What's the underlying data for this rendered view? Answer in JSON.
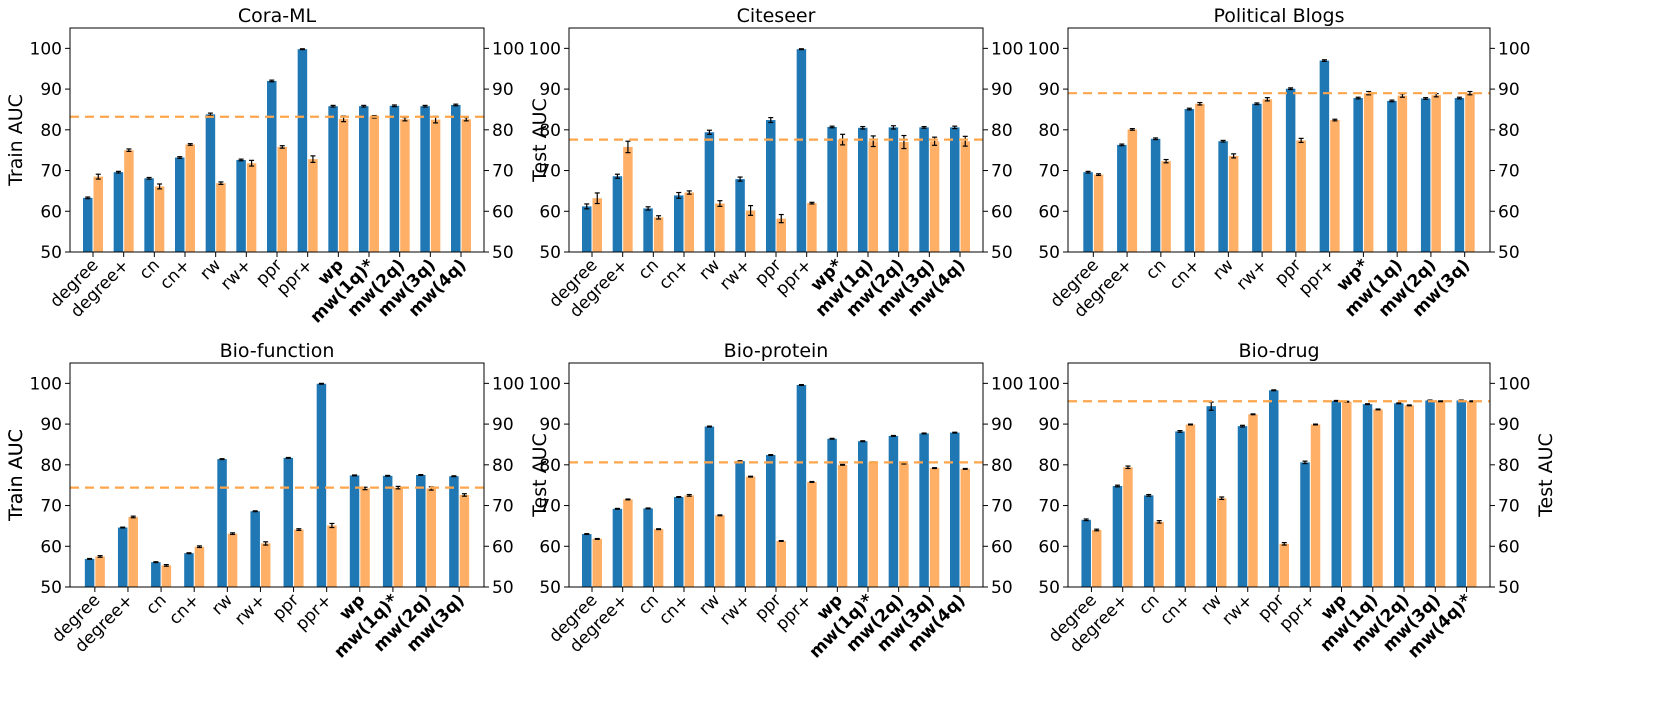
{
  "figure": {
    "left_axis_label": "Train AUC",
    "right_axis_label": "Test AUC",
    "train_color": "#1f77b4",
    "test_color": "#ffb066",
    "reference_line_color": "#ffa64d"
  },
  "chart_data": [
    {
      "type": "bar",
      "title": "Cora-ML",
      "categories": [
        "degree",
        "degree+",
        "cn",
        "cn+",
        "rw",
        "rw+",
        "ppr",
        "ppr+",
        "wp",
        "mw(1q)*",
        "mw(2q)",
        "mw(3q)",
        "mw(4q)"
      ],
      "bold_categories": [
        "wp",
        "mw(1q)*",
        "mw(2q)",
        "mw(3q)",
        "mw(4q)"
      ],
      "series": [
        {
          "name": "Train AUC",
          "values": [
            63.3,
            69.6,
            68.1,
            73.2,
            83.8,
            72.6,
            92.0,
            99.8,
            85.8,
            85.8,
            85.9,
            85.8,
            86.1
          ],
          "errors": [
            0.2,
            0.2,
            0.2,
            0.2,
            0.3,
            0.2,
            0.2,
            0.1,
            0.2,
            0.2,
            0.2,
            0.2,
            0.2
          ]
        },
        {
          "name": "Test AUC",
          "values": [
            68.5,
            75.0,
            66.1,
            76.4,
            66.9,
            71.8,
            75.8,
            72.8,
            82.7,
            83.2,
            82.6,
            82.5,
            82.6
          ],
          "errors": [
            0.6,
            0.3,
            0.6,
            0.2,
            0.3,
            0.7,
            0.3,
            0.8,
            0.7,
            0.3,
            0.4,
            0.8,
            0.4
          ]
        }
      ],
      "reference_line": 83.2,
      "ylim": [
        50,
        105
      ],
      "ylabel": "Train AUC",
      "y2label": "Test AUC",
      "yticks": [
        50,
        60,
        70,
        80,
        90,
        100
      ]
    },
    {
      "type": "bar",
      "title": "Citeseer",
      "categories": [
        "degree",
        "degree+",
        "cn",
        "cn+",
        "rw",
        "rw+",
        "ppr",
        "ppr+",
        "wp*",
        "mw(1q)",
        "mw(2q)",
        "mw(3q)",
        "mw(4q)"
      ],
      "bold_categories": [
        "wp*",
        "mw(1q)",
        "mw(2q)",
        "mw(3q)",
        "mw(4q)"
      ],
      "series": [
        {
          "name": "Train AUC",
          "values": [
            61.2,
            68.6,
            60.7,
            63.9,
            79.4,
            67.9,
            82.4,
            99.8,
            80.7,
            80.5,
            80.6,
            80.6,
            80.6
          ],
          "errors": [
            0.6,
            0.5,
            0.4,
            0.7,
            0.5,
            0.5,
            0.6,
            0.1,
            0.2,
            0.3,
            0.4,
            0.2,
            0.3
          ]
        },
        {
          "name": "Test AUC",
          "values": [
            63.2,
            75.8,
            58.5,
            64.6,
            61.9,
            60.2,
            58.2,
            62.0,
            77.6,
            77.2,
            77.0,
            77.2,
            77.2
          ],
          "errors": [
            1.3,
            1.4,
            0.4,
            0.4,
            0.7,
            1.2,
            1.0,
            0.2,
            1.3,
            1.3,
            1.6,
            1.0,
            1.2
          ]
        }
      ],
      "reference_line": 77.6,
      "ylim": [
        50,
        105
      ],
      "yticks": [
        50,
        60,
        70,
        80,
        90,
        100
      ]
    },
    {
      "type": "bar",
      "title": "Political Blogs",
      "categories": [
        "degree",
        "degree+",
        "cn",
        "cn+",
        "rw",
        "rw+",
        "ppr",
        "ppr+",
        "wp*",
        "mw(1q)",
        "mw(2q)",
        "mw(3q)"
      ],
      "bold_categories": [
        "wp*",
        "mw(1q)",
        "mw(2q)",
        "mw(3q)"
      ],
      "series": [
        {
          "name": "Train AUC",
          "values": [
            69.6,
            76.3,
            77.8,
            85.1,
            77.2,
            86.4,
            90.1,
            97.0,
            87.8,
            87.1,
            87.7,
            87.8
          ],
          "errors": [
            0.2,
            0.2,
            0.2,
            0.2,
            0.2,
            0.2,
            0.2,
            0.2,
            0.2,
            0.2,
            0.2,
            0.2
          ]
        },
        {
          "name": "Test AUC",
          "values": [
            69.0,
            80.1,
            72.3,
            86.4,
            73.6,
            87.5,
            77.4,
            82.4,
            89.0,
            88.4,
            88.5,
            89.0
          ],
          "errors": [
            0.2,
            0.2,
            0.4,
            0.3,
            0.5,
            0.4,
            0.5,
            0.2,
            0.4,
            0.4,
            0.4,
            0.4
          ]
        }
      ],
      "reference_line": 89.0,
      "ylim": [
        50,
        105
      ],
      "yticks": [
        50,
        60,
        70,
        80,
        90,
        100
      ]
    },
    {
      "type": "bar",
      "title": "Bio-function",
      "categories": [
        "degree",
        "degree+",
        "cn",
        "cn+",
        "rw",
        "rw+",
        "ppr",
        "ppr+",
        "wp",
        "mw(1q)*",
        "mw(2q)",
        "mw(3q)"
      ],
      "bold_categories": [
        "wp",
        "mw(1q)*",
        "mw(2q)",
        "mw(3q)"
      ],
      "series": [
        {
          "name": "Train AUC",
          "values": [
            56.9,
            64.6,
            56.1,
            58.3,
            81.4,
            68.6,
            81.7,
            99.9,
            77.4,
            77.3,
            77.5,
            77.2
          ],
          "errors": [
            0.1,
            0.1,
            0.1,
            0.1,
            0.1,
            0.1,
            0.1,
            0.1,
            0.1,
            0.1,
            0.1,
            0.1
          ]
        },
        {
          "name": "Test AUC",
          "values": [
            57.5,
            67.2,
            55.3,
            59.9,
            63.1,
            60.7,
            64.1,
            65.1,
            74.2,
            74.4,
            74.2,
            72.6
          ],
          "errors": [
            0.2,
            0.2,
            0.2,
            0.2,
            0.2,
            0.4,
            0.2,
            0.5,
            0.3,
            0.3,
            0.4,
            0.3
          ]
        }
      ],
      "reference_line": 74.4,
      "ylim": [
        50,
        105
      ],
      "ylabel": "Train AUC",
      "y2label": "Test AUC",
      "yticks": [
        50,
        60,
        70,
        80,
        90,
        100
      ]
    },
    {
      "type": "bar",
      "title": "Bio-protein",
      "categories": [
        "degree",
        "degree+",
        "cn",
        "cn+",
        "rw",
        "rw+",
        "ppr",
        "ppr+",
        "wp",
        "mw(1q)*",
        "mw(2q)",
        "mw(3q)",
        "mw(4q)"
      ],
      "bold_categories": [
        "wp",
        "mw(1q)*",
        "mw(2q)",
        "mw(3q)",
        "mw(4q)"
      ],
      "series": [
        {
          "name": "Train AUC",
          "values": [
            63.0,
            69.2,
            69.3,
            72.1,
            89.4,
            80.9,
            82.4,
            99.6,
            86.4,
            85.8,
            87.1,
            87.7,
            87.9
          ],
          "errors": [
            0.1,
            0.1,
            0.1,
            0.1,
            0.1,
            0.1,
            0.1,
            0.1,
            0.1,
            0.1,
            0.1,
            0.1,
            0.1
          ]
        },
        {
          "name": "Test AUC",
          "values": [
            61.8,
            71.5,
            64.2,
            72.5,
            67.6,
            77.1,
            61.3,
            75.8,
            80.0,
            80.6,
            80.3,
            79.2,
            79.0
          ],
          "errors": [
            0.1,
            0.1,
            0.1,
            0.2,
            0.1,
            0.1,
            0.1,
            0.1,
            0.1,
            0.1,
            0.1,
            0.1,
            0.1
          ]
        }
      ],
      "reference_line": 80.6,
      "ylim": [
        50,
        105
      ],
      "yticks": [
        50,
        60,
        70,
        80,
        90,
        100
      ]
    },
    {
      "type": "bar",
      "title": "Bio-drug",
      "categories": [
        "degree",
        "degree+",
        "cn",
        "cn+",
        "rw",
        "rw+",
        "ppr",
        "ppr+",
        "wp",
        "mw(1q)",
        "mw(2q)",
        "mw(3q)",
        "mw(4q)*"
      ],
      "bold_categories": [
        "wp",
        "mw(1q)",
        "mw(2q)",
        "mw(3q)",
        "mw(4q)*"
      ],
      "series": [
        {
          "name": "Train AUC",
          "values": [
            66.5,
            74.8,
            72.5,
            88.2,
            94.4,
            89.5,
            98.3,
            80.6,
            95.7,
            94.9,
            95.1,
            95.8,
            95.8
          ],
          "errors": [
            0.2,
            0.2,
            0.2,
            0.2,
            1.0,
            0.2,
            0.1,
            0.3,
            0.1,
            0.1,
            0.1,
            0.1,
            0.1
          ]
        },
        {
          "name": "Test AUC",
          "values": [
            64.0,
            79.4,
            66.0,
            89.9,
            71.8,
            92.4,
            60.6,
            89.9,
            95.5,
            93.6,
            94.6,
            95.6,
            95.6
          ],
          "errors": [
            0.2,
            0.3,
            0.3,
            0.1,
            0.3,
            0.1,
            0.3,
            0.1,
            0.1,
            0.1,
            0.1,
            0.1,
            0.1
          ]
        }
      ],
      "reference_line": 95.6,
      "ylim": [
        50,
        105
      ],
      "ylabel": "Train AUC",
      "y2label": "Test AUC",
      "yticks": [
        50,
        60,
        70,
        80,
        90,
        100
      ]
    }
  ]
}
